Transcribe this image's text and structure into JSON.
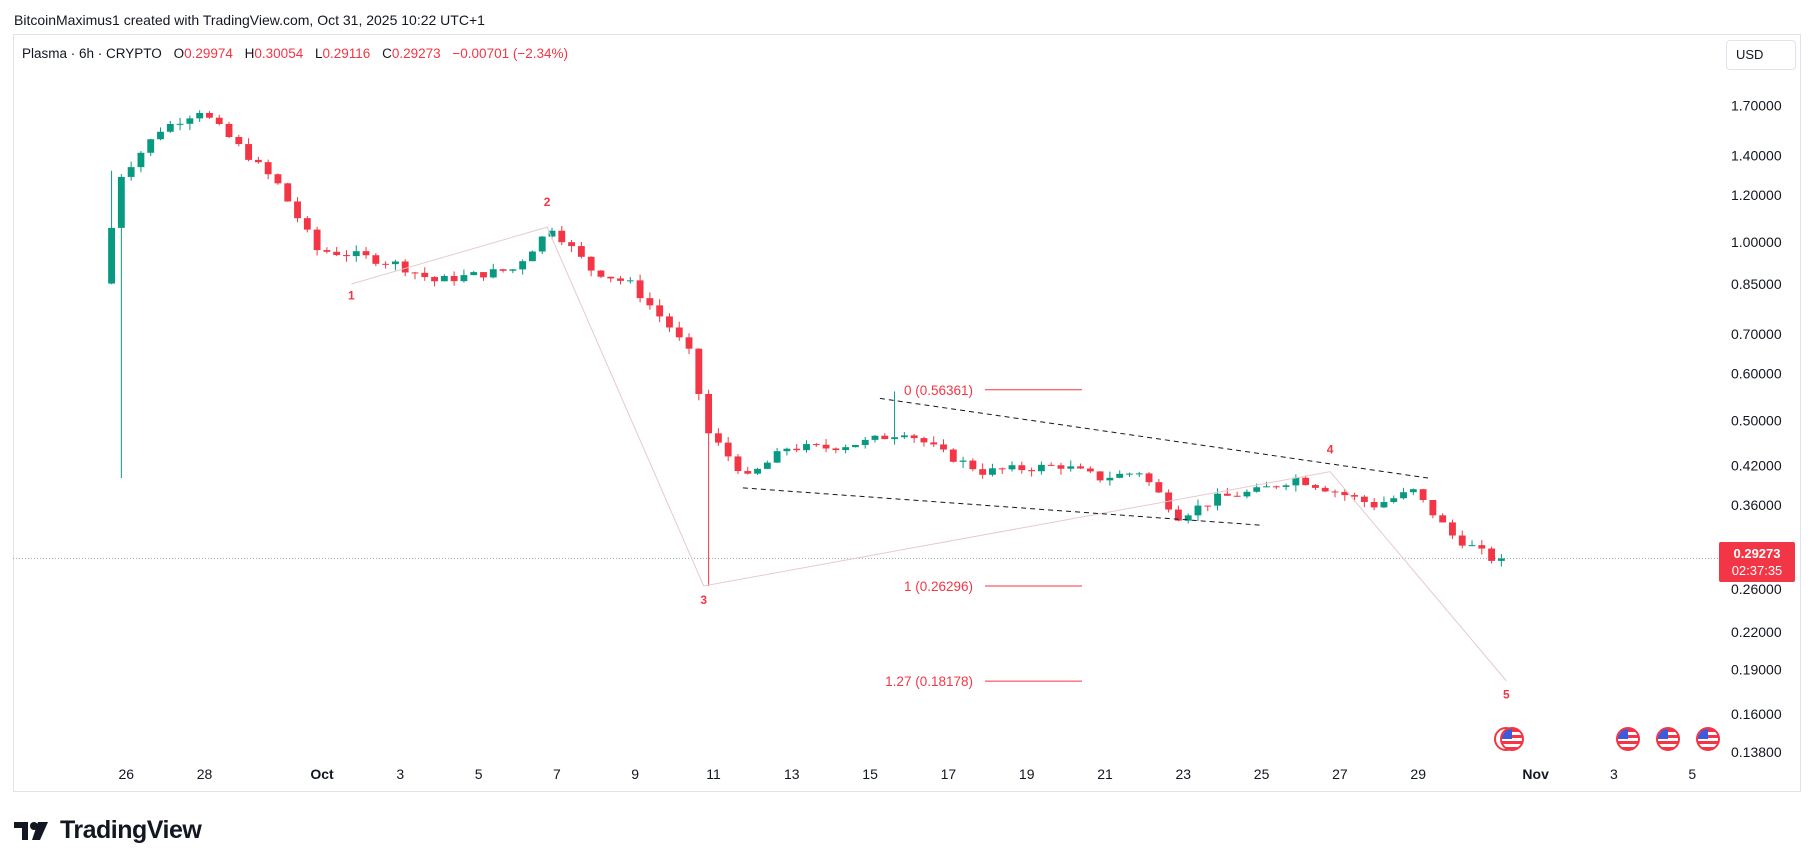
{
  "attribution": "BitcoinMaximus1 created with TradingView.com, Oct 31, 2025 10:22 UTC+1",
  "header": {
    "symbol": "Plasma · 6h · CRYPTO",
    "o_label": "O",
    "o_value": "0.29974",
    "h_label": "H",
    "h_value": "0.30054",
    "l_label": "L",
    "l_value": "0.29116",
    "c_label": "C",
    "c_value": "0.29273",
    "change": "−0.00701 (−2.34%)"
  },
  "currency_button": "USD",
  "last_price": {
    "price": "0.29273",
    "countdown": "02:37:35"
  },
  "logo_text": "TradingView",
  "colors": {
    "up": "#089981",
    "down": "#f23645",
    "accent": "#f23645"
  },
  "chart_data": {
    "type": "candlestick",
    "interval": "6h",
    "y_scale": "log",
    "ylim": [
      0.138,
      1.82
    ],
    "y_ticks": [
      "1.70000",
      "1.40000",
      "1.20000",
      "1.00000",
      "0.85000",
      "0.70000",
      "0.60000",
      "0.50000",
      "0.42000",
      "0.36000",
      "0.30000",
      "0.26000",
      "0.22000",
      "0.19000",
      "0.16000",
      "0.13800"
    ],
    "x_ticks": [
      {
        "label": "26",
        "day": -5
      },
      {
        "label": "28",
        "day": -3
      },
      {
        "label": "Oct",
        "day": 0,
        "bold": true
      },
      {
        "label": "3",
        "day": 2
      },
      {
        "label": "5",
        "day": 4
      },
      {
        "label": "7",
        "day": 6
      },
      {
        "label": "9",
        "day": 8
      },
      {
        "label": "11",
        "day": 10
      },
      {
        "label": "13",
        "day": 12
      },
      {
        "label": "15",
        "day": 14
      },
      {
        "label": "17",
        "day": 16
      },
      {
        "label": "19",
        "day": 18
      },
      {
        "label": "21",
        "day": 20
      },
      {
        "label": "23",
        "day": 22
      },
      {
        "label": "25",
        "day": 24
      },
      {
        "label": "27",
        "day": 26
      },
      {
        "label": "29",
        "day": 28
      },
      {
        "label": "Nov",
        "day": 31,
        "bold": true
      },
      {
        "label": "3",
        "day": 33
      },
      {
        "label": "5",
        "day": 35
      }
    ],
    "key_points": [
      {
        "date": "Sep 25 12:00",
        "price": 0.86
      },
      {
        "date": "Sep 26",
        "price": 1.3
      },
      {
        "date": "Sep 27",
        "price": 1.55
      },
      {
        "date": "Sep 28",
        "price": 1.67
      },
      {
        "date": "Sep 29",
        "price": 1.45
      },
      {
        "date": "Sep 30",
        "price": 1.25
      },
      {
        "date": "Oct 1",
        "price": 0.97
      },
      {
        "date": "Oct 2",
        "price": 0.95
      },
      {
        "date": "Oct 3",
        "price": 0.92
      },
      {
        "date": "Oct 4",
        "price": 0.86
      },
      {
        "date": "Oct 5",
        "price": 0.88
      },
      {
        "date": "Oct 6",
        "price": 0.9
      },
      {
        "date": "Oct 7",
        "price": 1.06
      },
      {
        "date": "Oct 8",
        "price": 0.9
      },
      {
        "date": "Oct 9",
        "price": 0.85
      },
      {
        "date": "Oct 10",
        "price": 0.72
      },
      {
        "date": "Oct 10 12:00",
        "price": 0.65
      },
      {
        "date": "Oct 11",
        "price": 0.475
      },
      {
        "date": "Oct 12",
        "price": 0.4
      },
      {
        "date": "Oct 13",
        "price": 0.45
      },
      {
        "date": "Oct 14",
        "price": 0.45
      },
      {
        "date": "Oct 15",
        "price": 0.46
      },
      {
        "date": "Oct 16",
        "price": 0.48
      },
      {
        "date": "Oct 17",
        "price": 0.44
      },
      {
        "date": "Oct 18",
        "price": 0.41
      },
      {
        "date": "Oct 20",
        "price": 0.42
      },
      {
        "date": "Oct 21",
        "price": 0.4
      },
      {
        "date": "Oct 22",
        "price": 0.41
      },
      {
        "date": "Oct 23",
        "price": 0.345
      },
      {
        "date": "Oct 24",
        "price": 0.37
      },
      {
        "date": "Oct 25",
        "price": 0.38
      },
      {
        "date": "Oct 26",
        "price": 0.4
      },
      {
        "date": "Oct 27",
        "price": 0.38
      },
      {
        "date": "Oct 28",
        "price": 0.36
      },
      {
        "date": "Oct 29",
        "price": 0.38
      },
      {
        "date": "Oct 30",
        "price": 0.32
      },
      {
        "date": "Oct 31",
        "price": 0.2927
      }
    ],
    "wave_labels": [
      {
        "label": "1",
        "day": 0.75,
        "price": 0.8
      },
      {
        "label": "2",
        "day": 5.75,
        "price": 1.15
      },
      {
        "label": "3",
        "day": 9.75,
        "price": 0.245
      },
      {
        "label": "4",
        "day": 25.75,
        "price": 0.44
      },
      {
        "label": "5",
        "day": 30.25,
        "price": 0.17
      }
    ],
    "wave_path": [
      {
        "day": 0.75,
        "price": 0.85
      },
      {
        "day": 5.75,
        "price": 1.06
      },
      {
        "day": 9.75,
        "price": 0.263
      },
      {
        "day": 25.75,
        "price": 0.41
      },
      {
        "day": 30.25,
        "price": 0.182
      }
    ],
    "fib_levels": [
      {
        "label": "0 (0.56361)",
        "price": 0.56361
      },
      {
        "label": "1 (0.26296)",
        "price": 0.26296
      },
      {
        "label": "1.27 (0.18178)",
        "price": 0.18178
      }
    ],
    "last_price": 0.29273
  }
}
